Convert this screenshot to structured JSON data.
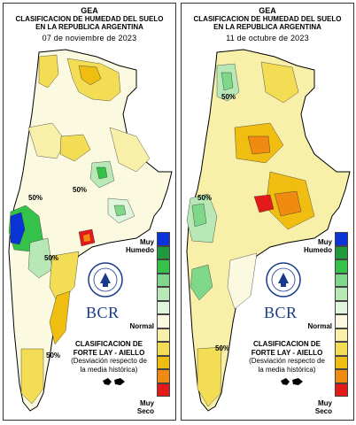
{
  "panels": [
    {
      "org": "GEA",
      "title_line1": "CLASIFICACION DE HUMEDAD DEL SUELO",
      "title_line2": "EN LA REPUBLICA ARGENTINA",
      "date": "07 de noviembre de 2023",
      "contour_labels": [
        "50%",
        "50%",
        "50%",
        "50%"
      ]
    },
    {
      "org": "GEA",
      "title_line1": "CLASIFICACION DE HUMEDAD DEL SUELO",
      "title_line2": "EN LA REPUBLICA ARGENTINA",
      "date": "11 de octubre de 2023",
      "contour_labels": [
        "50%",
        "50%",
        "50%"
      ]
    }
  ],
  "legend": {
    "top_label_1": "Muy",
    "top_label_2": "Humedo",
    "mid_label": "Normal",
    "bottom_label_1": "Muy",
    "bottom_label_2": "Seco",
    "colors": [
      "#0a33d8",
      "#1f9a3c",
      "#35c24a",
      "#7fd88a",
      "#b7e8b5",
      "#dff5dc",
      "#fbfae0",
      "#f8f0a8",
      "#f2dd55",
      "#efbe10",
      "#f08a10",
      "#e31a1a"
    ]
  },
  "brand": {
    "logo_text": "BCR",
    "seal_text": "BOLSA DE COMERCIO DE ROSARIO"
  },
  "method": {
    "line1": "CLASIFICACION DE",
    "line2": "FORTE LAY - AIELLO",
    "line3": "(Desviación respecto de",
    "line4": "la media histórica)"
  }
}
